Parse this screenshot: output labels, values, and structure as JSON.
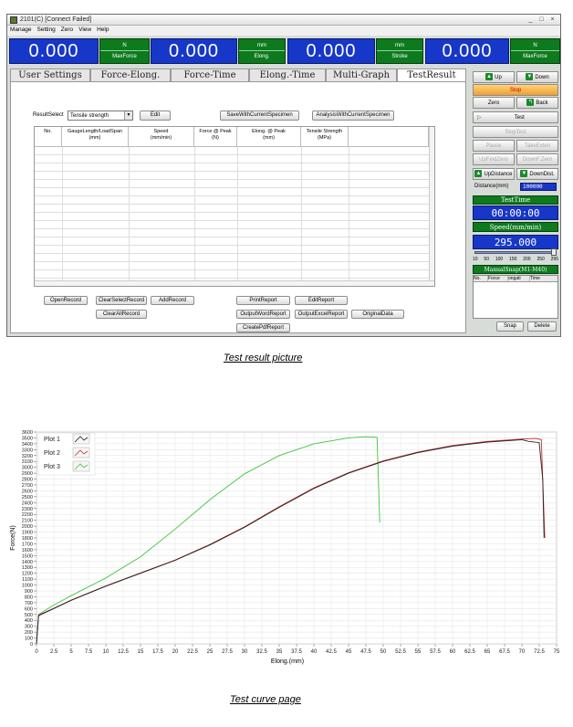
{
  "window": {
    "title": "2101(C)  [Connect Failed]",
    "controls": [
      "_",
      "□",
      "×"
    ]
  },
  "menu": [
    "Manage",
    "Setting",
    "Zero",
    "View",
    "Help"
  ],
  "displays": [
    {
      "value": "0.000",
      "unit": "N",
      "label": "MaxForce"
    },
    {
      "value": "0.000",
      "unit": "mm",
      "label": "Elong."
    },
    {
      "value": "0.000",
      "unit": "mm",
      "label": "Stroke"
    },
    {
      "value": "0.000",
      "unit": "N",
      "label": "MaxForce"
    }
  ],
  "tabs": [
    "User Settings",
    "Force-Elong.",
    "Force-Time",
    "Elong.-Time",
    "Multi-Graph",
    "TestResult"
  ],
  "active_tab": "TestResult",
  "result": {
    "select_label": "ResultSelect",
    "select_value": "Tensile strength",
    "edit": "Edit",
    "save": "SaveWithCurrentSpecimen",
    "analysis": "AnalysisWithCurrentSpecimen"
  },
  "table_headers": [
    "No.",
    "GaugeLength/LoadSpan\n(mm)",
    "Speed\n(mm/min)",
    "Force @ Peak\n(N)",
    "Elong. @ Peak\n(mm)",
    "Tensile Strength\n(MPa)"
  ],
  "buttons": {
    "open_record": "OpenRecord",
    "clear_select_record": "ClearSelectRecord",
    "add_record": "AddRecord",
    "clear_all_record": "ClearAllRecord",
    "print_report": "PrintReport",
    "edit_report": "EditReport",
    "output_word_report": "OutputWordReport",
    "output_excel_report": "OutputExcelReport",
    "original_data": "OriginalData",
    "create_pdf_report": "CreatePdfReport"
  },
  "side": {
    "up": "Up",
    "down": "Down",
    "stop": "Stop",
    "zero": "Zero",
    "back": "Back",
    "test": "Test",
    "stop_test": "StopTest",
    "pause": "Pause",
    "take_exten": "TakeExten",
    "up_find_zero": "UpFindZero",
    "down_f_zero": "DownF.Zero",
    "up_distance": "UpDistance",
    "down_dist": "DownDist.",
    "distance_label": "Distance(mm)",
    "distance_value": "100000",
    "test_time_label": "TestTime",
    "test_time_value": "00:00:00",
    "speed_label": "Speed(mm/min)",
    "speed_value": "295.000",
    "speed_ticks": [
      "10",
      "50",
      "100",
      "150",
      "200",
      "250",
      "295"
    ],
    "snap_title": "ManualSnap(M1-M40)",
    "snap_headers": [
      "No.",
      "Force",
      "ongati",
      "Time"
    ],
    "snap": "Snap",
    "delete": "Delete"
  },
  "caption1": "Test result picture",
  "caption2": "Test curve page",
  "chart_data": {
    "type": "line",
    "xlabel": "Elong.(mm)",
    "ylabel": "Force(N)",
    "xlim": [
      0,
      75
    ],
    "ylim": [
      0,
      3600
    ],
    "xticks": [
      0,
      2.5,
      5,
      7.5,
      10,
      12.5,
      15,
      17.5,
      20,
      22.5,
      25,
      27.5,
      30,
      32.5,
      35,
      37.5,
      40,
      42.5,
      45,
      47.5,
      50,
      52.5,
      55,
      57.5,
      60,
      62.5,
      65,
      67.5,
      70,
      72.5,
      75
    ],
    "yticks": [
      0,
      100,
      200,
      300,
      400,
      500,
      600,
      700,
      800,
      900,
      1000,
      1100,
      1200,
      1300,
      1400,
      1500,
      1600,
      1700,
      1800,
      1900,
      2000,
      2100,
      2200,
      2300,
      2400,
      2500,
      2600,
      2700,
      2800,
      2900,
      3000,
      3100,
      3200,
      3300,
      3400,
      3500,
      3600
    ],
    "grid": true,
    "legend_position": "top-left",
    "series": [
      {
        "name": "Plot 1",
        "color": "#222222",
        "x": [
          0,
          0.3,
          2.5,
          5,
          10,
          15,
          20,
          25,
          30,
          35,
          40,
          45,
          50,
          55,
          60,
          65,
          70,
          71,
          72.5,
          73,
          73.2
        ],
        "y": [
          0,
          480,
          600,
          740,
          980,
          1200,
          1420,
          1680,
          1980,
          2320,
          2640,
          2900,
          3100,
          3250,
          3360,
          3430,
          3470,
          3440,
          3420,
          2800,
          1800
        ]
      },
      {
        "name": "Plot 2",
        "color": "#d03030",
        "x": [
          0,
          0.3,
          2.5,
          5,
          10,
          15,
          20,
          25,
          30,
          35,
          40,
          45,
          50,
          55,
          60,
          65,
          70,
          72,
          72.8,
          73,
          73.3
        ],
        "y": [
          0,
          490,
          605,
          745,
          985,
          1205,
          1425,
          1690,
          1990,
          2330,
          2650,
          2910,
          3110,
          3260,
          3370,
          3440,
          3480,
          3490,
          3470,
          2800,
          1800
        ]
      },
      {
        "name": "Plot 3",
        "color": "#3ac83a",
        "x": [
          0,
          0.3,
          2.5,
          5,
          10,
          15,
          20,
          25,
          30,
          35,
          40,
          45,
          47.5,
          49.1,
          49.3,
          49.5
        ],
        "y": [
          0,
          500,
          660,
          820,
          1120,
          1480,
          1950,
          2450,
          2890,
          3200,
          3400,
          3500,
          3520,
          3510,
          2800,
          2060
        ]
      }
    ]
  }
}
